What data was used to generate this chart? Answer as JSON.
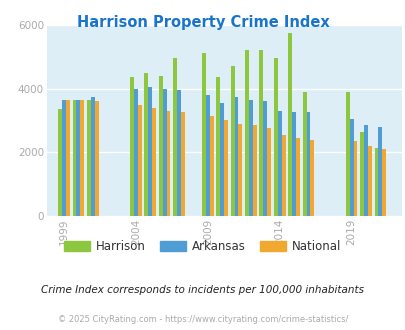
{
  "title": "Harrison Property Crime Index",
  "title_color": "#1874cd",
  "subtitle": "Crime Index corresponds to incidents per 100,000 inhabitants",
  "footer": "© 2025 CityRating.com - https://www.cityrating.com/crime-statistics/",
  "years": [
    1999,
    2000,
    2001,
    2004,
    2005,
    2006,
    2007,
    2009,
    2010,
    2011,
    2012,
    2013,
    2014,
    2015,
    2016,
    2019,
    2020,
    2021
  ],
  "x_ticks": [
    1999,
    2004,
    2009,
    2014,
    2019
  ],
  "harrison": [
    3350,
    3650,
    3650,
    4350,
    4500,
    4400,
    4950,
    5100,
    4350,
    4700,
    5200,
    5200,
    4950,
    5750,
    3900,
    3900,
    2650,
    2150
  ],
  "arkansas": [
    3650,
    3650,
    3750,
    4000,
    4050,
    4000,
    3950,
    3800,
    3550,
    3750,
    3650,
    3600,
    3300,
    3250,
    3250,
    3050,
    2850,
    2800
  ],
  "national": [
    3650,
    3650,
    3600,
    3500,
    3400,
    3300,
    3250,
    3150,
    3000,
    2900,
    2850,
    2750,
    2550,
    2450,
    2400,
    2350,
    2200,
    2100
  ],
  "harrison_color": "#8dc63f",
  "arkansas_color": "#4f9dd4",
  "national_color": "#f0a830",
  "ylim": [
    0,
    6000
  ],
  "yticks": [
    0,
    2000,
    4000,
    6000
  ],
  "plot_bg": "#deeef6",
  "bar_width": 0.27
}
